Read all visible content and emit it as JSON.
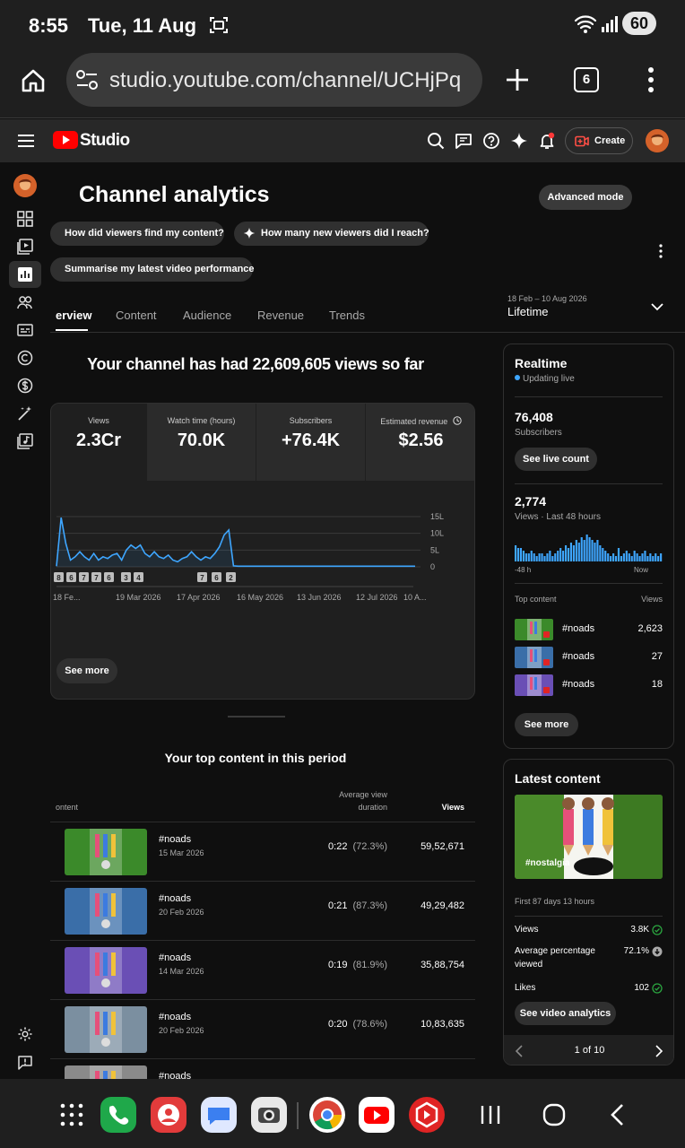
{
  "status_bar": {
    "time": "8:55",
    "date": "Tue, 11 Aug",
    "battery": "60"
  },
  "browser": {
    "url": "studio.youtube.com/channel/UCHjPq",
    "tab_count": "6"
  },
  "studio": {
    "logo_text": "Studio",
    "create_label": "Create"
  },
  "page": {
    "title": "Channel analytics",
    "advanced_mode": "Advanced mode",
    "chips": [
      "How did viewers find my content?",
      "How many new viewers did I reach?",
      "Summarise my latest video performance"
    ],
    "tabs": [
      "erview",
      "Content",
      "Audience",
      "Revenue",
      "Trends"
    ],
    "range_dates": "18 Feb – 10 Aug 2026",
    "range_label": "Lifetime",
    "views_headline": "Your channel has had 22,609,605 views so far"
  },
  "metrics": [
    {
      "label": "Views",
      "value": "2.3Cr"
    },
    {
      "label": "Watch time (hours)",
      "value": "70.0K"
    },
    {
      "label": "Subscribers",
      "value": "+76.4K"
    },
    {
      "label": "Estimated revenue",
      "value": "$2.56"
    }
  ],
  "chart_data": {
    "type": "line",
    "y_tick_labels": [
      "15L",
      "10L",
      "5L",
      "0"
    ],
    "ylim": [
      0,
      15
    ],
    "x_tick_labels": [
      "18 Fe...",
      "19 Mar 2026",
      "17 Apr 2026",
      "16 May 2026",
      "13 Jun 2026",
      "12 Jul 2026",
      "10 A..."
    ],
    "values": [
      0.2,
      14.7,
      7,
      2,
      3,
      4.5,
      3,
      2,
      4,
      2,
      3,
      2.5,
      3.5,
      4,
      2,
      5,
      6.5,
      5.5,
      6.5,
      4,
      3,
      4.5,
      3,
      2.5,
      3.5,
      2,
      1.5,
      2.5,
      3,
      4.5,
      3,
      2,
      3,
      2.5,
      4,
      6,
      9.5,
      11,
      0.3,
      0.2,
      0.2,
      0.2,
      0.2,
      0.2,
      0.2,
      0.2,
      0.2,
      0.2,
      0.2,
      0.2,
      0.2,
      0.2,
      0.2,
      0.2,
      0.2,
      0.2,
      0.2,
      0.2,
      0.2,
      0.2,
      0.2,
      0.2,
      0.2,
      0.2,
      0.2,
      0.2,
      0.2,
      0.2,
      0.2,
      0.2,
      0.2,
      0.2,
      0.2,
      0.2,
      0.2,
      0.2,
      0.2,
      0.2
    ],
    "upload_markers": [
      "8",
      "6",
      "7",
      "7",
      "6",
      "3",
      "4",
      "7",
      "6",
      "2"
    ],
    "grid": true
  },
  "see_more": "See more",
  "top_content": {
    "title": "Your top content in this period",
    "col_content": "ontent",
    "col_avg_line1": "Average view",
    "col_avg_line2": "duration",
    "col_views": "Views",
    "rows": [
      {
        "title": "#noads",
        "date": "15 Mar 2026",
        "duration": "0:22",
        "pct": "(72.3%)",
        "views": "59,52,671",
        "bg": "#3b8a2a"
      },
      {
        "title": "#noads",
        "date": "20 Feb 2026",
        "duration": "0:21",
        "pct": "(87.3%)",
        "views": "49,29,482",
        "bg": "#3a6ea8"
      },
      {
        "title": "#noads",
        "date": "14 Mar 2026",
        "duration": "0:19",
        "pct": "(81.9%)",
        "views": "35,88,754",
        "bg": "#6a4fb5"
      },
      {
        "title": "#noads",
        "date": "20 Feb 2026",
        "duration": "0:20",
        "pct": "(78.6%)",
        "views": "10,83,635",
        "bg": "#7b8fa0"
      },
      {
        "title": "#noads",
        "bg": "#8a8a8a"
      }
    ]
  },
  "realtime": {
    "title": "Realtime",
    "status": "Updating live",
    "subs_value": "76,408",
    "subs_label": "Subscribers",
    "live_btn": "See live count",
    "views_value": "2,774",
    "views_label": "Views · Last 48 hours",
    "axis_left": "-48 h",
    "axis_right": "Now",
    "bars": [
      6,
      5,
      5,
      4,
      3,
      3,
      4,
      3,
      2,
      3,
      3,
      2,
      3,
      4,
      2,
      3,
      4,
      5,
      4,
      6,
      5,
      7,
      6,
      8,
      7,
      9,
      8,
      10,
      9,
      8,
      7,
      8,
      6,
      5,
      4,
      3,
      2,
      3,
      2,
      5,
      2,
      3,
      4,
      3,
      2,
      4,
      3,
      2,
      3,
      4,
      2,
      3,
      2,
      3,
      2,
      3
    ],
    "top_label": "Top content",
    "views_col": "Views",
    "top": [
      {
        "title": "#noads",
        "views": "2,623",
        "bg": "#3b8a2a"
      },
      {
        "title": "#noads",
        "views": "27",
        "bg": "#3a6ea8"
      },
      {
        "title": "#noads",
        "views": "18",
        "bg": "#6a4fb5"
      }
    ],
    "see_more": "See more"
  },
  "latest": {
    "title": "Latest content",
    "thumb_caption": "#nostalgia",
    "period": "First 87 days 13 hours",
    "views_label": "Views",
    "views_value": "3.8K",
    "avg_label_1": "Average percentage",
    "avg_label_2": "viewed",
    "avg_value": "72.1%",
    "likes_label": "Likes",
    "likes_value": "102",
    "btn": "See video analytics",
    "pager": "1 of 10",
    "accent_green": "#2ba640"
  }
}
